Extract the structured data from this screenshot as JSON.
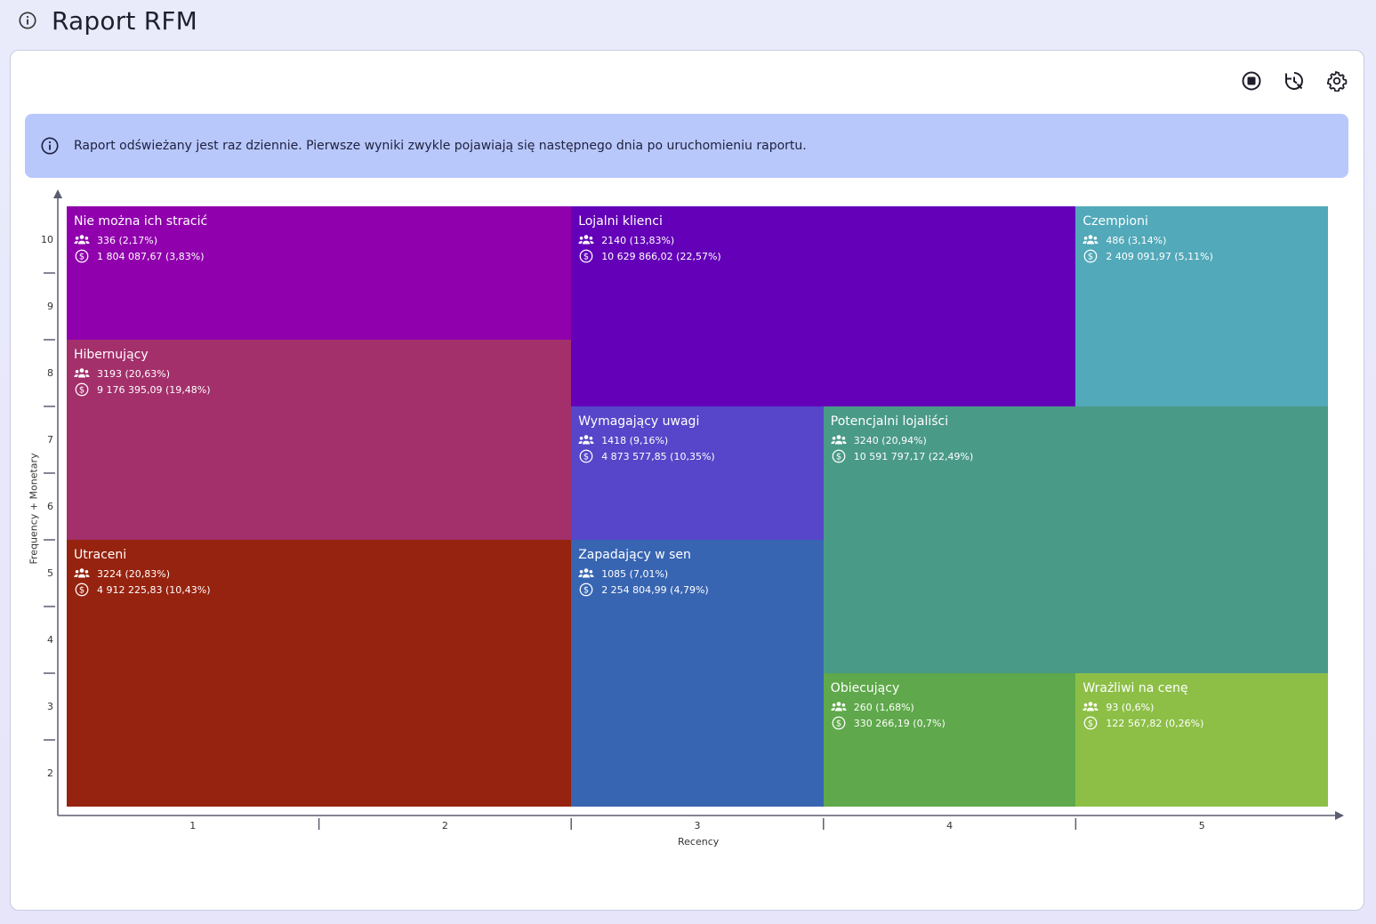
{
  "page": {
    "title": "Raport RFM",
    "title_icon": "info-circle-icon"
  },
  "toolbar": {
    "buttons": [
      {
        "name": "stop-icon",
        "label": "Stop"
      },
      {
        "name": "history-reset-icon",
        "label": "Reset"
      },
      {
        "name": "gear-icon",
        "label": "Settings"
      }
    ]
  },
  "banner": {
    "icon": "info-circle-icon",
    "text": "Raport odświeżany jest raz dziennie. Pierwsze wyniki zwykle pojawiają się następnego dnia po uruchomieniu raportu.",
    "color": "#b9c8fb"
  },
  "chart_data": {
    "type": "heatmap",
    "xlabel": "Recency",
    "ylabel": "Frequency + Monetary",
    "x_ticks": [
      "1",
      "2",
      "3",
      "4",
      "5"
    ],
    "y_ticks": [
      "10",
      "9",
      "8",
      "7",
      "6",
      "5",
      "4",
      "3",
      "2"
    ],
    "xlim": [
      0.5,
      5.5
    ],
    "ylim": [
      1.5,
      10.5
    ],
    "segments": [
      {
        "name": "Nie można ich stracić",
        "customers": "336 (2,17%)",
        "revenue": "1 804 087,67 (3,83%)",
        "color": "#9000ad",
        "x": [
          0.5,
          2.5
        ],
        "y": [
          8.5,
          10.5
        ]
      },
      {
        "name": "Lojalni klienci",
        "customers": "2140 (13,83%)",
        "revenue": "10 629 866,02 (22,57%)",
        "color": "#6300b8",
        "x": [
          2.5,
          4.5
        ],
        "y": [
          7.5,
          10.5
        ]
      },
      {
        "name": "Czempioni",
        "customers": "486 (3,14%)",
        "revenue": "2 409 091,97 (5,11%)",
        "color": "#52a9b9",
        "x": [
          4.5,
          5.5
        ],
        "y": [
          7.5,
          10.5
        ]
      },
      {
        "name": "Hibernujący",
        "customers": "3193 (20,63%)",
        "revenue": "9 176 395,09 (19,48%)",
        "color": "#a3306b",
        "x": [
          0.5,
          2.5
        ],
        "y": [
          5.5,
          8.5
        ]
      },
      {
        "name": "Wymagający uwagi",
        "customers": "1418 (9,16%)",
        "revenue": "4 873 577,85 (10,35%)",
        "color": "#5746c9",
        "x": [
          2.5,
          3.5
        ],
        "y": [
          5.5,
          7.5
        ]
      },
      {
        "name": "Potencjalni lojaliści",
        "customers": "3240 (20,94%)",
        "revenue": "10 591 797,17 (22,49%)",
        "color": "#4a9a88",
        "x": [
          3.5,
          5.5
        ],
        "y": [
          3.5,
          7.5
        ]
      },
      {
        "name": "Utraceni",
        "customers": "3224 (20,83%)",
        "revenue": "4 912 225,83 (10,43%)",
        "color": "#96230f",
        "x": [
          0.5,
          2.5
        ],
        "y": [
          1.5,
          5.5
        ]
      },
      {
        "name": "Zapadający w sen",
        "customers": "1085 (7,01%)",
        "revenue": "2 254 804,99 (4,79%)",
        "color": "#3865b2",
        "x": [
          2.5,
          3.5
        ],
        "y": [
          1.5,
          5.5
        ]
      },
      {
        "name": "Obiecujący",
        "customers": "260 (1,68%)",
        "revenue": "330 266,19 (0,7%)",
        "color": "#5fa84b",
        "x": [
          3.5,
          4.5
        ],
        "y": [
          1.5,
          3.5
        ]
      },
      {
        "name": "Wrażliwi na cenę",
        "customers": "93 (0,6%)",
        "revenue": "122 567,82 (0,26%)",
        "color": "#8dbf47",
        "x": [
          4.5,
          5.5
        ],
        "y": [
          1.5,
          3.5
        ]
      }
    ]
  }
}
